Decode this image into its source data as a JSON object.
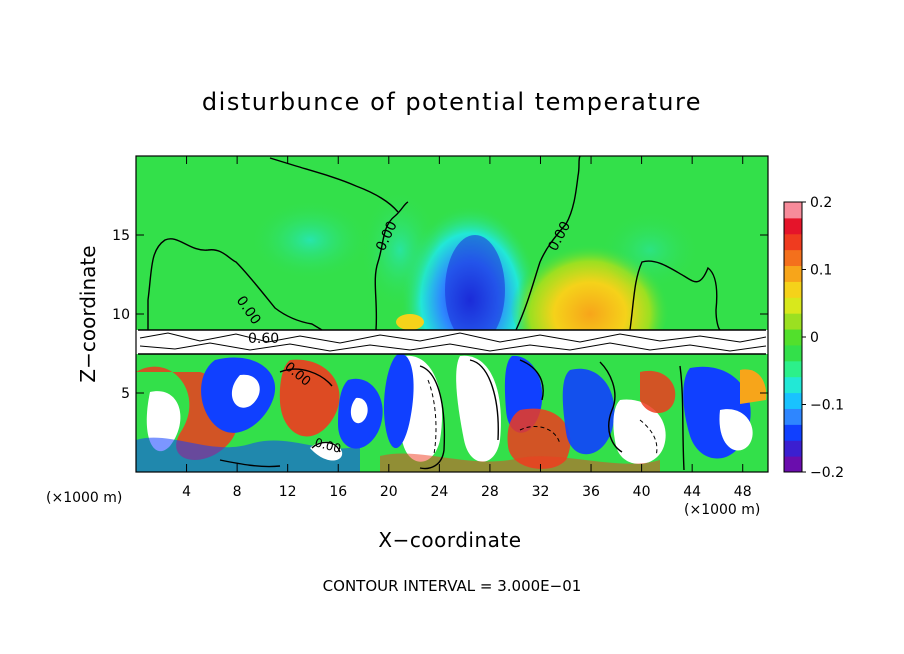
{
  "chart_data": {
    "type": "heatmap",
    "title": "disturbunce of potential temperature",
    "xlabel": "X−coordinate",
    "ylabel": "Z−coordinate",
    "x_unit_label": "(×1000 m)",
    "xlim": [
      0,
      50
    ],
    "ylim": [
      0,
      20
    ],
    "x_ticks": [
      4,
      8,
      12,
      16,
      20,
      24,
      28,
      32,
      36,
      40,
      44,
      48
    ],
    "y_ticks": [
      5,
      10,
      15
    ],
    "colorbar": {
      "range": [
        -0.2,
        0.2
      ],
      "tick_labels": [
        "0.2",
        "0.1",
        "0",
        "−0.1",
        "−0.2"
      ],
      "tick_values": [
        0.2,
        0.1,
        0,
        -0.1,
        -0.2
      ],
      "colors": [
        "#6a0dad",
        "#3b1fd0",
        "#1040ff",
        "#2e86ff",
        "#19c2ff",
        "#22e8d6",
        "#2cf08a",
        "#33e04a",
        "#52e02c",
        "#9be021",
        "#d8e81c",
        "#f5d21a",
        "#f7a51a",
        "#f4701c",
        "#ef3b1f",
        "#e5142a",
        "#f78b9a"
      ]
    },
    "contour_labels": [
      "0.00",
      "0.00",
      "0.00",
      "0.00",
      "0.60",
      "0.00"
    ],
    "footer": "CONTOUR INTERVAL = 3.000E−01"
  }
}
